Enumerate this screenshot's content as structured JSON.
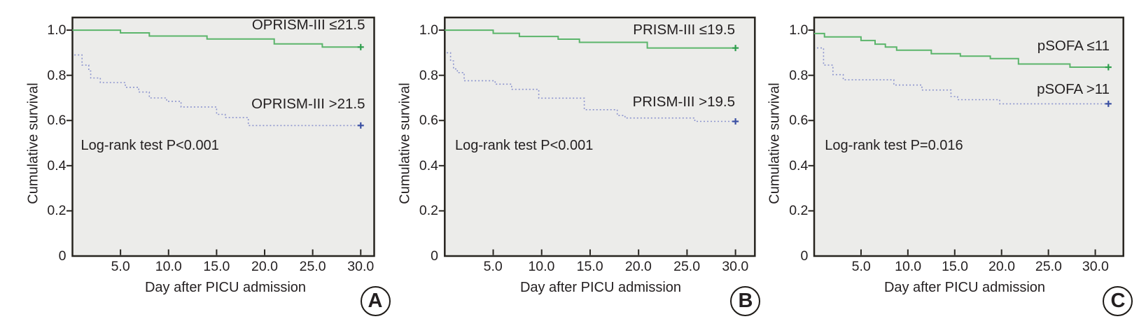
{
  "figure": {
    "y_axis_title": "Cumulative survival",
    "x_axis_title": "Day after PICU admission",
    "y_tick_labels": [
      "1.0",
      "0.8",
      "0.6",
      "0.4",
      "0.2",
      "0"
    ],
    "x_tick_labels": [
      "5.0",
      "10.0",
      "15.0",
      "20.0",
      "25.0",
      "30.0"
    ],
    "colors": {
      "low_risk_line": "#5bb56b",
      "low_risk_censor": "#2e9e4c",
      "high_risk_line": "#8d95ce",
      "high_risk_censor": "#3b50a3",
      "plot_background": "#ececea",
      "axis_frame": "#27241f",
      "text": "#231f20"
    }
  },
  "chart_data": [
    {
      "type": "line",
      "subtype": "kaplan-meier-step",
      "panel_label": "A",
      "xlabel": "Day after PICU admission",
      "ylabel": "Cumulative survival",
      "xlim": [
        0,
        31.4
      ],
      "ylim": [
        0,
        1.056
      ],
      "x_ticks": [
        5,
        10,
        15,
        20,
        25,
        30
      ],
      "y_ticks": [
        0,
        0.2,
        0.4,
        0.6,
        0.8,
        1.0
      ],
      "grid": false,
      "legend_position": "inline-right",
      "annotation": "Log-rank test P<0.001",
      "series": [
        {
          "name": "OPRISM-III ≤21.5",
          "style": "solid",
          "color_key": "low_risk",
          "steps": [
            [
              0,
              1.0
            ],
            [
              5,
              0.988
            ],
            [
              8,
              0.974
            ],
            [
              14,
              0.961
            ],
            [
              21,
              0.939
            ],
            [
              26,
              0.925
            ]
          ],
          "end_day": 30,
          "censor_at_end": true
        },
        {
          "name": "OPRISM-III >21.5",
          "style": "dotted",
          "color_key": "high_risk",
          "steps": [
            [
              0.2,
              0.89
            ],
            [
              1.0,
              0.845
            ],
            [
              1.7,
              0.819
            ],
            [
              1.9,
              0.788
            ],
            [
              2.9,
              0.768
            ],
            [
              5.5,
              0.747
            ],
            [
              6.9,
              0.726
            ],
            [
              8.0,
              0.7
            ],
            [
              9.8,
              0.685
            ],
            [
              11.3,
              0.66
            ],
            [
              15.0,
              0.627
            ],
            [
              15.9,
              0.613
            ],
            [
              18.3,
              0.578
            ]
          ],
          "end_day": 30,
          "censor_at_end": true
        }
      ]
    },
    {
      "type": "line",
      "subtype": "kaplan-meier-step",
      "panel_label": "B",
      "xlabel": "Day after PICU admission",
      "ylabel": "Cumulative survival",
      "xlim": [
        0,
        32
      ],
      "ylim": [
        0,
        1.056
      ],
      "x_ticks": [
        5,
        10,
        15,
        20,
        25,
        30
      ],
      "y_ticks": [
        0,
        0.2,
        0.4,
        0.6,
        0.8,
        1.0
      ],
      "grid": false,
      "legend_position": "inline-right",
      "annotation": "Log-rank test P<0.001",
      "series": [
        {
          "name": "PRISM-III ≤19.5",
          "style": "solid",
          "color_key": "low_risk",
          "steps": [
            [
              0,
              1.0
            ],
            [
              5,
              0.986
            ],
            [
              7.7,
              0.972
            ],
            [
              11.7,
              0.96
            ],
            [
              13.9,
              0.946
            ],
            [
              20.9,
              0.921
            ]
          ],
          "end_day": 30,
          "censor_at_end": true
        },
        {
          "name": "PRISM-III >19.5",
          "style": "dotted",
          "color_key": "high_risk",
          "steps": [
            [
              0.2,
              0.9
            ],
            [
              0.6,
              0.864
            ],
            [
              0.9,
              0.828
            ],
            [
              1.3,
              0.812
            ],
            [
              2.0,
              0.776
            ],
            [
              5.2,
              0.761
            ],
            [
              6.9,
              0.738
            ],
            [
              9.7,
              0.699
            ],
            [
              14.4,
              0.648
            ],
            [
              17.8,
              0.622
            ],
            [
              18.6,
              0.611
            ],
            [
              25.8,
              0.596
            ]
          ],
          "end_day": 30,
          "censor_at_end": true
        }
      ]
    },
    {
      "type": "line",
      "subtype": "kaplan-meier-step",
      "panel_label": "C",
      "xlabel": "Day after PICU admission",
      "ylabel": "Cumulative survival",
      "xlim": [
        0,
        33
      ],
      "ylim": [
        0,
        1.056
      ],
      "x_ticks": [
        5,
        10,
        15,
        20,
        25,
        30
      ],
      "y_ticks": [
        0,
        0.2,
        0.4,
        0.6,
        0.8,
        1.0
      ],
      "grid": false,
      "legend_position": "inline-right",
      "annotation": "Log-rank test P=0.016",
      "series": [
        {
          "name": "pSOFA ≤11",
          "style": "solid",
          "color_key": "low_risk",
          "steps": [
            [
              0,
              0.985
            ],
            [
              1.1,
              0.97
            ],
            [
              5.0,
              0.954
            ],
            [
              6.5,
              0.938
            ],
            [
              7.6,
              0.925
            ],
            [
              8.8,
              0.911
            ],
            [
              12.5,
              0.896
            ],
            [
              15.6,
              0.885
            ],
            [
              18.8,
              0.874
            ],
            [
              21.8,
              0.85
            ],
            [
              27.3,
              0.836
            ]
          ],
          "end_day": 31.4,
          "censor_at_end": true
        },
        {
          "name": "pSOFA >11",
          "style": "dotted",
          "color_key": "high_risk",
          "steps": [
            [
              0.3,
              0.921
            ],
            [
              1.0,
              0.845
            ],
            [
              2.0,
              0.803
            ],
            [
              3.1,
              0.78
            ],
            [
              8.5,
              0.757
            ],
            [
              11.5,
              0.735
            ],
            [
              14.6,
              0.706
            ],
            [
              15.3,
              0.692
            ],
            [
              19.8,
              0.674
            ]
          ],
          "end_day": 31.4,
          "censor_at_end": true
        }
      ]
    }
  ]
}
